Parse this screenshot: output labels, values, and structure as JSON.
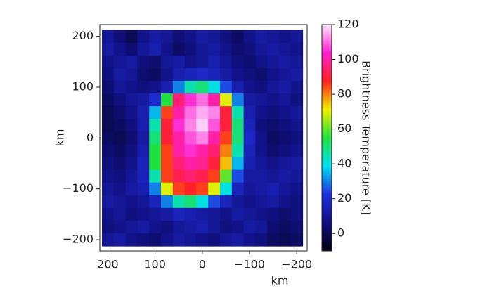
{
  "chart_data": {
    "type": "heatmap",
    "xlabel": "km",
    "ylabel": "km",
    "xlim": [
      217,
      -222
    ],
    "ylim": [
      -222,
      223
    ],
    "xticks": [
      200,
      100,
      0,
      {
        "value": -100,
        "label": "−100"
      },
      {
        "value": -200,
        "label": "−200"
      }
    ],
    "yticks": [
      200,
      100,
      0,
      {
        "value": -100,
        "label": "−100"
      },
      {
        "value": -200,
        "label": "−200"
      }
    ],
    "x": [
      200,
      175,
      150,
      125,
      100,
      75,
      50,
      25,
      0,
      -25,
      -50,
      -75,
      -100,
      -125,
      -150,
      -175,
      -200
    ],
    "y": [
      200,
      175,
      150,
      125,
      100,
      75,
      50,
      25,
      0,
      -25,
      -50,
      -75,
      -100,
      -125,
      -150,
      -175,
      -200
    ],
    "values": [
      [
        10,
        5,
        0,
        8,
        12,
        10,
        5,
        8,
        12,
        10,
        6,
        2,
        8,
        12,
        10,
        8,
        10
      ],
      [
        12,
        8,
        4,
        10,
        14,
        8,
        2,
        6,
        10,
        12,
        8,
        4,
        6,
        10,
        12,
        10,
        8
      ],
      [
        8,
        10,
        12,
        6,
        4,
        10,
        12,
        8,
        10,
        14,
        10,
        6,
        4,
        8,
        10,
        12,
        10
      ],
      [
        6,
        12,
        10,
        4,
        2,
        8,
        14,
        16,
        18,
        16,
        12,
        8,
        6,
        4,
        8,
        10,
        12
      ],
      [
        4,
        10,
        8,
        6,
        8,
        14,
        30,
        45,
        50,
        40,
        25,
        14,
        8,
        6,
        10,
        12,
        8
      ],
      [
        2,
        6,
        10,
        12,
        20,
        55,
        95,
        105,
        110,
        100,
        70,
        30,
        12,
        10,
        8,
        10,
        6
      ],
      [
        0,
        4,
        8,
        14,
        35,
        85,
        100,
        110,
        115,
        112,
        90,
        45,
        14,
        8,
        6,
        8,
        10
      ],
      [
        0,
        2,
        6,
        14,
        45,
        90,
        105,
        112,
        118,
        108,
        90,
        50,
        16,
        6,
        4,
        6,
        8
      ],
      [
        2,
        0,
        4,
        12,
        50,
        90,
        100,
        108,
        112,
        100,
        85,
        50,
        18,
        8,
        2,
        4,
        6
      ],
      [
        4,
        2,
        6,
        14,
        55,
        85,
        100,
        105,
        100,
        95,
        80,
        45,
        16,
        8,
        4,
        6,
        8
      ],
      [
        6,
        4,
        8,
        16,
        55,
        85,
        95,
        100,
        98,
        90,
        75,
        35,
        14,
        10,
        8,
        10,
        12
      ],
      [
        8,
        6,
        10,
        16,
        45,
        85,
        92,
        95,
        92,
        85,
        60,
        25,
        12,
        12,
        10,
        12,
        10
      ],
      [
        10,
        8,
        12,
        14,
        30,
        70,
        85,
        88,
        85,
        70,
        40,
        16,
        10,
        12,
        14,
        10,
        8
      ],
      [
        12,
        10,
        8,
        10,
        16,
        30,
        45,
        50,
        40,
        25,
        16,
        10,
        8,
        10,
        12,
        8,
        6
      ],
      [
        8,
        10,
        6,
        8,
        10,
        12,
        16,
        14,
        12,
        10,
        8,
        12,
        10,
        8,
        6,
        4,
        6
      ],
      [
        6,
        8,
        10,
        12,
        8,
        6,
        10,
        12,
        14,
        10,
        6,
        8,
        12,
        10,
        4,
        2,
        4
      ],
      [
        10,
        12,
        8,
        6,
        4,
        8,
        12,
        10,
        8,
        6,
        10,
        12,
        8,
        6,
        2,
        0,
        2
      ]
    ],
    "colorbar": {
      "label": "Brightness Temperature [K]",
      "lim": [
        -10,
        120
      ],
      "ticks": [
        0,
        20,
        40,
        60,
        80,
        100,
        120
      ],
      "colors": [
        "#000010",
        "#101080",
        "#2030e0",
        "#00e0f0",
        "#20e040",
        "#f0f000",
        "#ff2020",
        "#ff20d0",
        "#ffe8ff"
      ]
    }
  }
}
